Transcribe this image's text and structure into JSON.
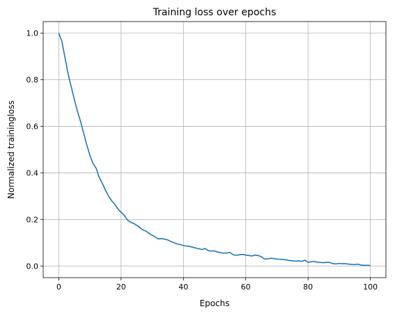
{
  "chart_data": {
    "type": "line",
    "title": "Training loss over epochs",
    "xlabel": "Epochs",
    "ylabel": "Normalized trainingloss",
    "xlim": [
      -5,
      105
    ],
    "ylim": [
      -0.05,
      1.05
    ],
    "xticks": [
      0,
      20,
      40,
      60,
      80,
      100
    ],
    "xtick_labels": [
      "0",
      "20",
      "40",
      "60",
      "80",
      "100"
    ],
    "yticks": [
      0.0,
      0.2,
      0.4,
      0.6,
      0.8,
      1.0
    ],
    "ytick_labels": [
      "0.0",
      "0.2",
      "0.4",
      "0.6",
      "0.8",
      "1.0"
    ],
    "grid": true,
    "line_color": "#1f77b4",
    "grid_color": "#b0b0b0",
    "series": [
      {
        "x": [
          0,
          1,
          2,
          3,
          4,
          5,
          6,
          7,
          8,
          9,
          10,
          11,
          12,
          13,
          14,
          15,
          16,
          17,
          18,
          19,
          20,
          21,
          22,
          23,
          24,
          25,
          26,
          27,
          28,
          29,
          30,
          31,
          32,
          33,
          34,
          35,
          36,
          37,
          38,
          39,
          40,
          41,
          42,
          43,
          44,
          45,
          46,
          47,
          48,
          49,
          50,
          51,
          52,
          53,
          54,
          55,
          56,
          57,
          58,
          59,
          60,
          61,
          62,
          63,
          64,
          65,
          66,
          67,
          68,
          69,
          70,
          71,
          72,
          73,
          74,
          75,
          76,
          77,
          78,
          79,
          80,
          81,
          82,
          83,
          84,
          85,
          86,
          87,
          88,
          89,
          90,
          91,
          92,
          93,
          94,
          95,
          96,
          97,
          98,
          99,
          100
        ],
        "y": [
          1.0,
          0.965,
          0.895,
          0.825,
          0.77,
          0.715,
          0.665,
          0.62,
          0.57,
          0.52,
          0.475,
          0.44,
          0.42,
          0.38,
          0.355,
          0.325,
          0.3,
          0.28,
          0.265,
          0.245,
          0.23,
          0.218,
          0.198,
          0.188,
          0.183,
          0.175,
          0.165,
          0.155,
          0.15,
          0.14,
          0.132,
          0.124,
          0.116,
          0.118,
          0.115,
          0.112,
          0.105,
          0.1,
          0.095,
          0.092,
          0.088,
          0.086,
          0.084,
          0.081,
          0.077,
          0.074,
          0.071,
          0.075,
          0.066,
          0.064,
          0.065,
          0.06,
          0.057,
          0.055,
          0.056,
          0.058,
          0.048,
          0.046,
          0.048,
          0.05,
          0.047,
          0.045,
          0.043,
          0.047,
          0.045,
          0.04,
          0.03,
          0.031,
          0.033,
          0.032,
          0.03,
          0.029,
          0.028,
          0.026,
          0.024,
          0.022,
          0.021,
          0.022,
          0.02,
          0.025,
          0.016,
          0.018,
          0.02,
          0.016,
          0.015,
          0.014,
          0.016,
          0.015,
          0.01,
          0.009,
          0.011,
          0.01,
          0.01,
          0.008,
          0.007,
          0.006,
          0.008,
          0.004,
          0.003,
          0.003,
          0.002
        ]
      }
    ]
  }
}
